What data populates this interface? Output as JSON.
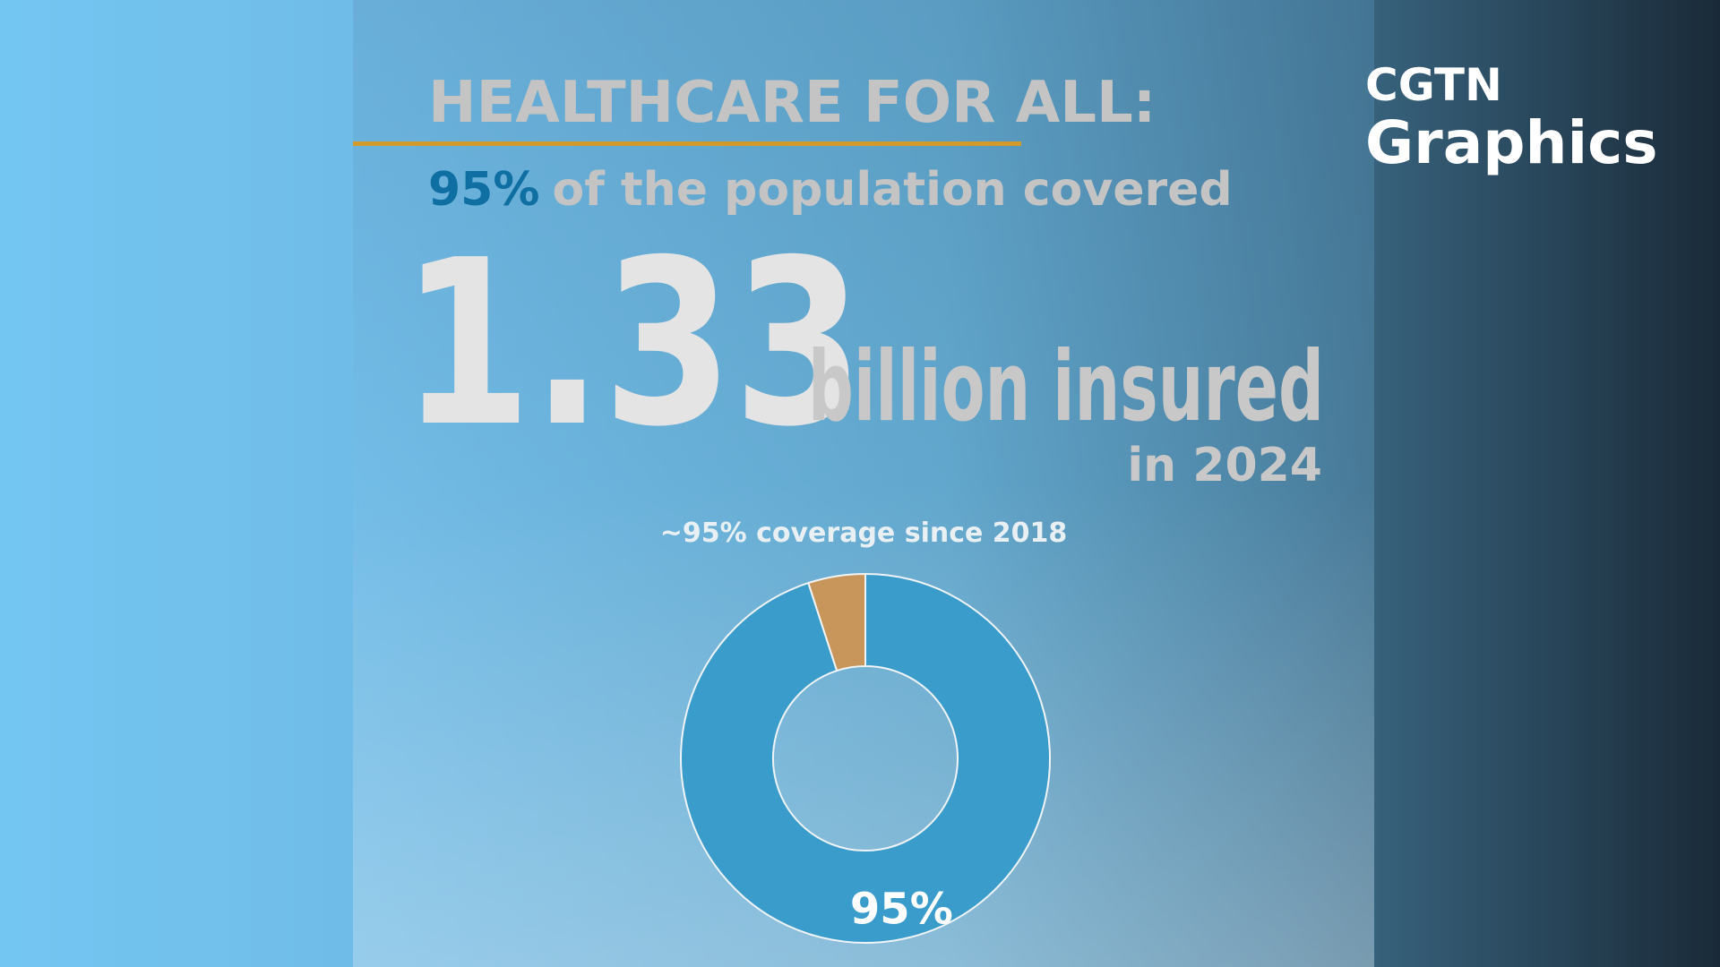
{
  "header": {
    "title": "HEALTHCARE FOR ALL:",
    "highlight": "95%",
    "subtitle": "of the population covered",
    "big_number": "1.33",
    "big_unit": "billion insured",
    "year_note": "in 2024"
  },
  "logo": {
    "top": "CGTN",
    "bottom": "Graphics"
  },
  "chart_data": {
    "type": "donut",
    "title": "~95% coverage since 2018",
    "values": [
      95,
      5
    ],
    "value_labels": [
      "95%",
      null
    ],
    "colors": [
      "#3a9ccb",
      "#c8955a"
    ]
  }
}
